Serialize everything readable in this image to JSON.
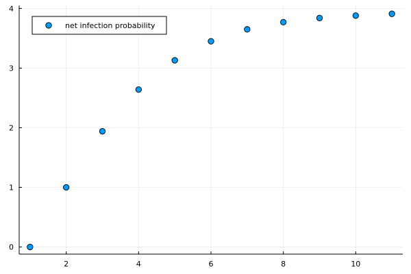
{
  "chart_data": {
    "type": "scatter",
    "title": "",
    "xlabel": "",
    "ylabel": "",
    "xlim": [
      0.7,
      11.3
    ],
    "ylim": [
      -0.12,
      4.05
    ],
    "grid": true,
    "legend_position": "top-left",
    "x_ticks": [
      2,
      4,
      6,
      8,
      10
    ],
    "y_ticks": [
      0,
      1,
      2,
      3,
      4
    ],
    "series": [
      {
        "name": "net infection probability",
        "color": "#009af9",
        "marker": "circle",
        "x": [
          1,
          2,
          3,
          4,
          5,
          6,
          7,
          8,
          9,
          10,
          11
        ],
        "y": [
          0.0,
          1.0,
          1.94,
          2.64,
          3.13,
          3.45,
          3.65,
          3.77,
          3.84,
          3.88,
          3.91
        ]
      }
    ]
  }
}
